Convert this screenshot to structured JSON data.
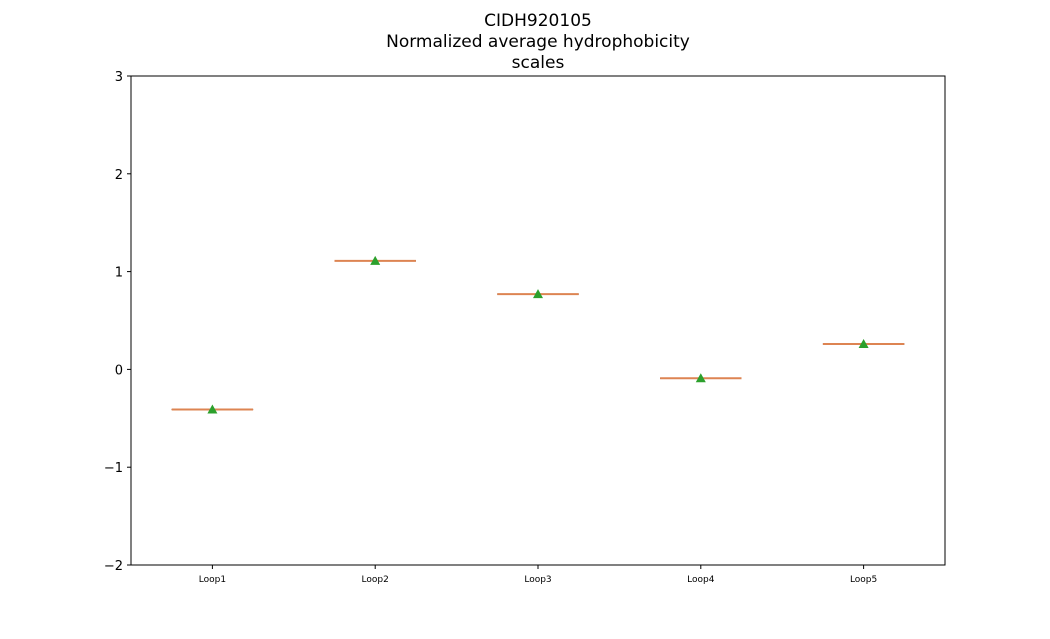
{
  "chart_data": {
    "type": "box",
    "title_lines": [
      "CIDH920105",
      "Normalized average hydrophobicity",
      "scales"
    ],
    "categories": [
      "Loop1",
      "Loop2",
      "Loop3",
      "Loop4",
      "Loop5"
    ],
    "values": [
      -0.41,
      1.11,
      0.77,
      -0.09,
      0.26
    ],
    "means": [
      -0.41,
      1.11,
      0.77,
      -0.09,
      0.26
    ],
    "ylim": [
      -2,
      3
    ],
    "yticks": [
      -2,
      -1,
      0,
      1,
      2,
      3
    ],
    "ytick_labels": [
      "−2",
      "−1",
      "0",
      "1",
      "2",
      "3"
    ],
    "xlabel": "",
    "ylabel": "",
    "grid": false,
    "colors": {
      "median": "#dd8452",
      "box": "#000000",
      "mean_marker": "#2ca02c",
      "axes": "#000000"
    }
  }
}
